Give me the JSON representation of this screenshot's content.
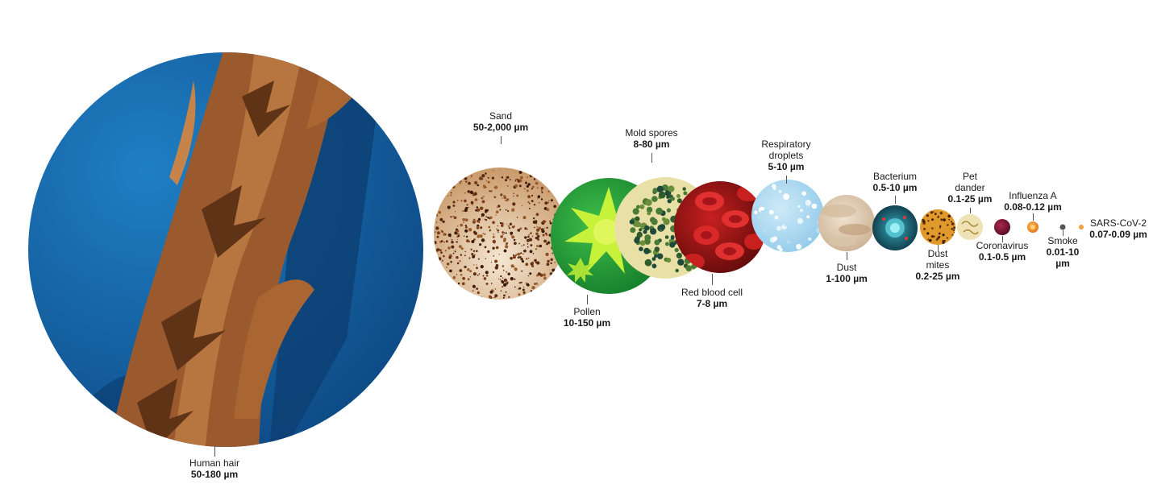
{
  "items": [
    {
      "name": "Human hair",
      "size": "50-180 µm"
    },
    {
      "name": "Sand",
      "size": "50-2,000 µm"
    },
    {
      "name": "Pollen",
      "size": "10-150 µm"
    },
    {
      "name": "Mold spores",
      "size": "8-80 µm"
    },
    {
      "name": "Red blood cell",
      "size": "7-8 µm"
    },
    {
      "name_lines": [
        "Respiratory",
        "droplets"
      ],
      "size": "5-10 µm"
    },
    {
      "name": "Dust",
      "size": "1-100 µm"
    },
    {
      "name": "Bacterium",
      "size": "0.5-10 µm"
    },
    {
      "name_lines": [
        "Dust",
        "mites"
      ],
      "size": "0.2-25 µm"
    },
    {
      "name_lines": [
        "Pet",
        "dander"
      ],
      "size": "0.1-25 µm"
    },
    {
      "name": "Coronavirus",
      "size": "0.1-0.5 µm"
    },
    {
      "name": "Influenza A",
      "size": "0.08-0.12 µm"
    },
    {
      "name": "Smoke",
      "size_lines": [
        "0.01-10",
        "µm"
      ]
    },
    {
      "name": "SARS-CoV-2",
      "size": "0.07-0.09 µm"
    }
  ]
}
